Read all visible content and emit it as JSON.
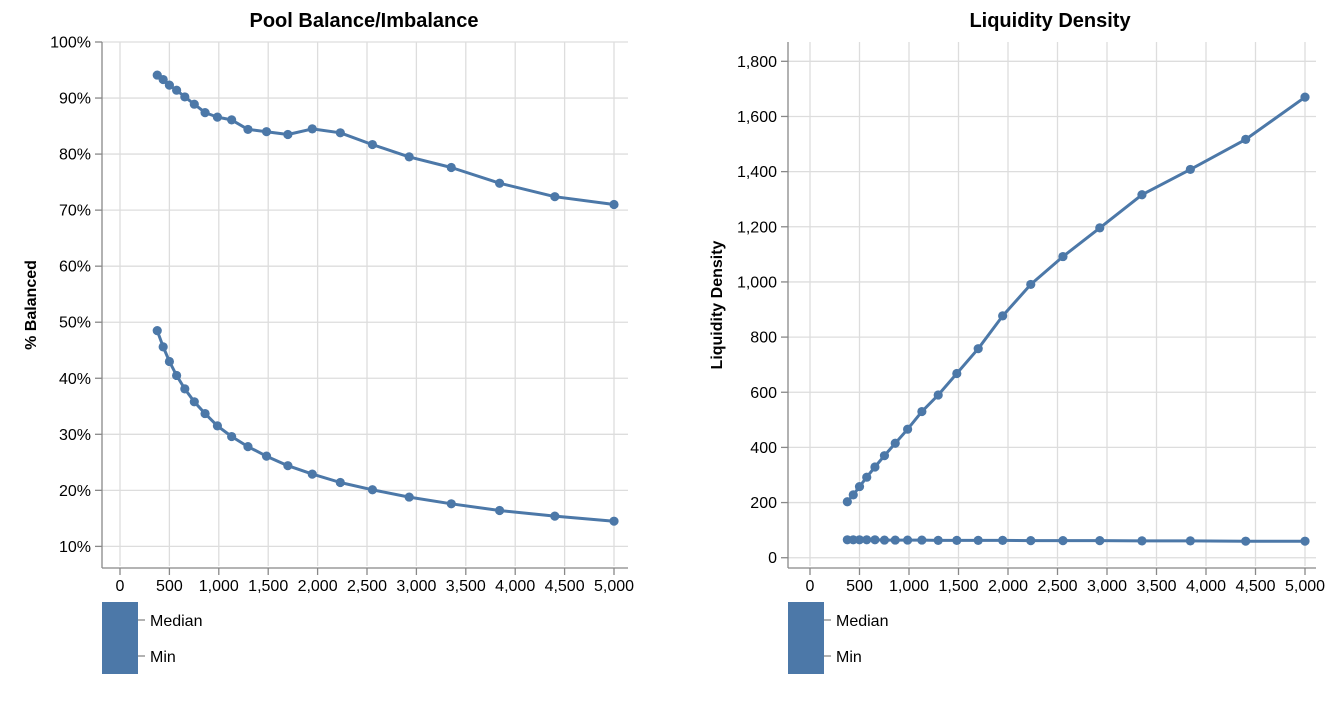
{
  "colors": {
    "series": "#4c78a8",
    "grid": "#dddddd",
    "axis": "#888888"
  },
  "chart_data": [
    {
      "type": "line",
      "title": "Pool Balance/Imbalance",
      "xlabel": "",
      "ylabel": "% Balanced",
      "xlim": [
        0,
        5000
      ],
      "ylim": [
        0.065,
        1.0
      ],
      "x_ticks": [
        "0",
        "500",
        "1,000",
        "1,500",
        "2,000",
        "2,500",
        "3,000",
        "3,500",
        "4,000",
        "4,500",
        "5,000"
      ],
      "y_ticks": [
        "10%",
        "20%",
        "30%",
        "40%",
        "50%",
        "60%",
        "70%",
        "80%",
        "90%",
        "100%"
      ],
      "grid": true,
      "legend": {
        "placement": "bottom-left",
        "entries": [
          "Median",
          "Min"
        ]
      },
      "series": [
        {
          "name": "Median",
          "x": [
            377,
            437,
            500,
            573,
            656,
            752,
            861,
            986,
            1130,
            1295,
            1483,
            1699,
            1946,
            2230,
            2555,
            2927,
            3353,
            3842,
            4401,
            5000
          ],
          "values": [
            0.941,
            0.933,
            0.923,
            0.914,
            0.902,
            0.889,
            0.874,
            0.866,
            0.861,
            0.844,
            0.84,
            0.835,
            0.845,
            0.838,
            0.817,
            0.795,
            0.776,
            0.748,
            0.724,
            0.71
          ]
        },
        {
          "name": "Min",
          "x": [
            377,
            437,
            500,
            573,
            656,
            752,
            861,
            986,
            1130,
            1295,
            1483,
            1699,
            1946,
            2230,
            2555,
            2927,
            3353,
            3842,
            4401,
            5000
          ],
          "values": [
            0.485,
            0.456,
            0.43,
            0.405,
            0.381,
            0.358,
            0.337,
            0.315,
            0.296,
            0.278,
            0.261,
            0.244,
            0.229,
            0.214,
            0.201,
            0.188,
            0.176,
            0.164,
            0.154,
            0.145
          ]
        }
      ]
    },
    {
      "type": "line",
      "title": "Liquidity Density",
      "xlabel": "",
      "ylabel": "Liquidity Density",
      "xlim": [
        0,
        5000
      ],
      "ylim": [
        -30,
        1870
      ],
      "x_ticks": [
        "0",
        "500",
        "1,000",
        "1,500",
        "2,000",
        "2,500",
        "3,000",
        "3,500",
        "4,000",
        "4,500",
        "5,000"
      ],
      "y_ticks": [
        "0",
        "200",
        "400",
        "600",
        "800",
        "1,000",
        "1,200",
        "1,400",
        "1,600",
        "1,800"
      ],
      "grid": true,
      "legend": {
        "placement": "bottom-left",
        "entries": [
          "Median",
          "Min"
        ]
      },
      "series": [
        {
          "name": "Median",
          "x": [
            377,
            437,
            500,
            573,
            656,
            752,
            861,
            986,
            1130,
            1295,
            1483,
            1699,
            1946,
            2230,
            2555,
            2927,
            3353,
            3842,
            4401,
            5000
          ],
          "values": [
            203,
            228,
            258,
            292,
            329,
            370,
            415,
            466,
            530,
            590,
            668,
            758,
            877,
            991,
            1092,
            1196,
            1316,
            1408,
            1517,
            1670
          ]
        },
        {
          "name": "Min",
          "x": [
            377,
            437,
            500,
            573,
            656,
            752,
            861,
            986,
            1130,
            1295,
            1483,
            1699,
            1946,
            2230,
            2555,
            2927,
            3353,
            3842,
            4401,
            5000
          ],
          "values": [
            65,
            65,
            65,
            65,
            65,
            64,
            64,
            64,
            64,
            63,
            63,
            63,
            63,
            62,
            62,
            62,
            61,
            61,
            60,
            60
          ]
        }
      ]
    }
  ]
}
